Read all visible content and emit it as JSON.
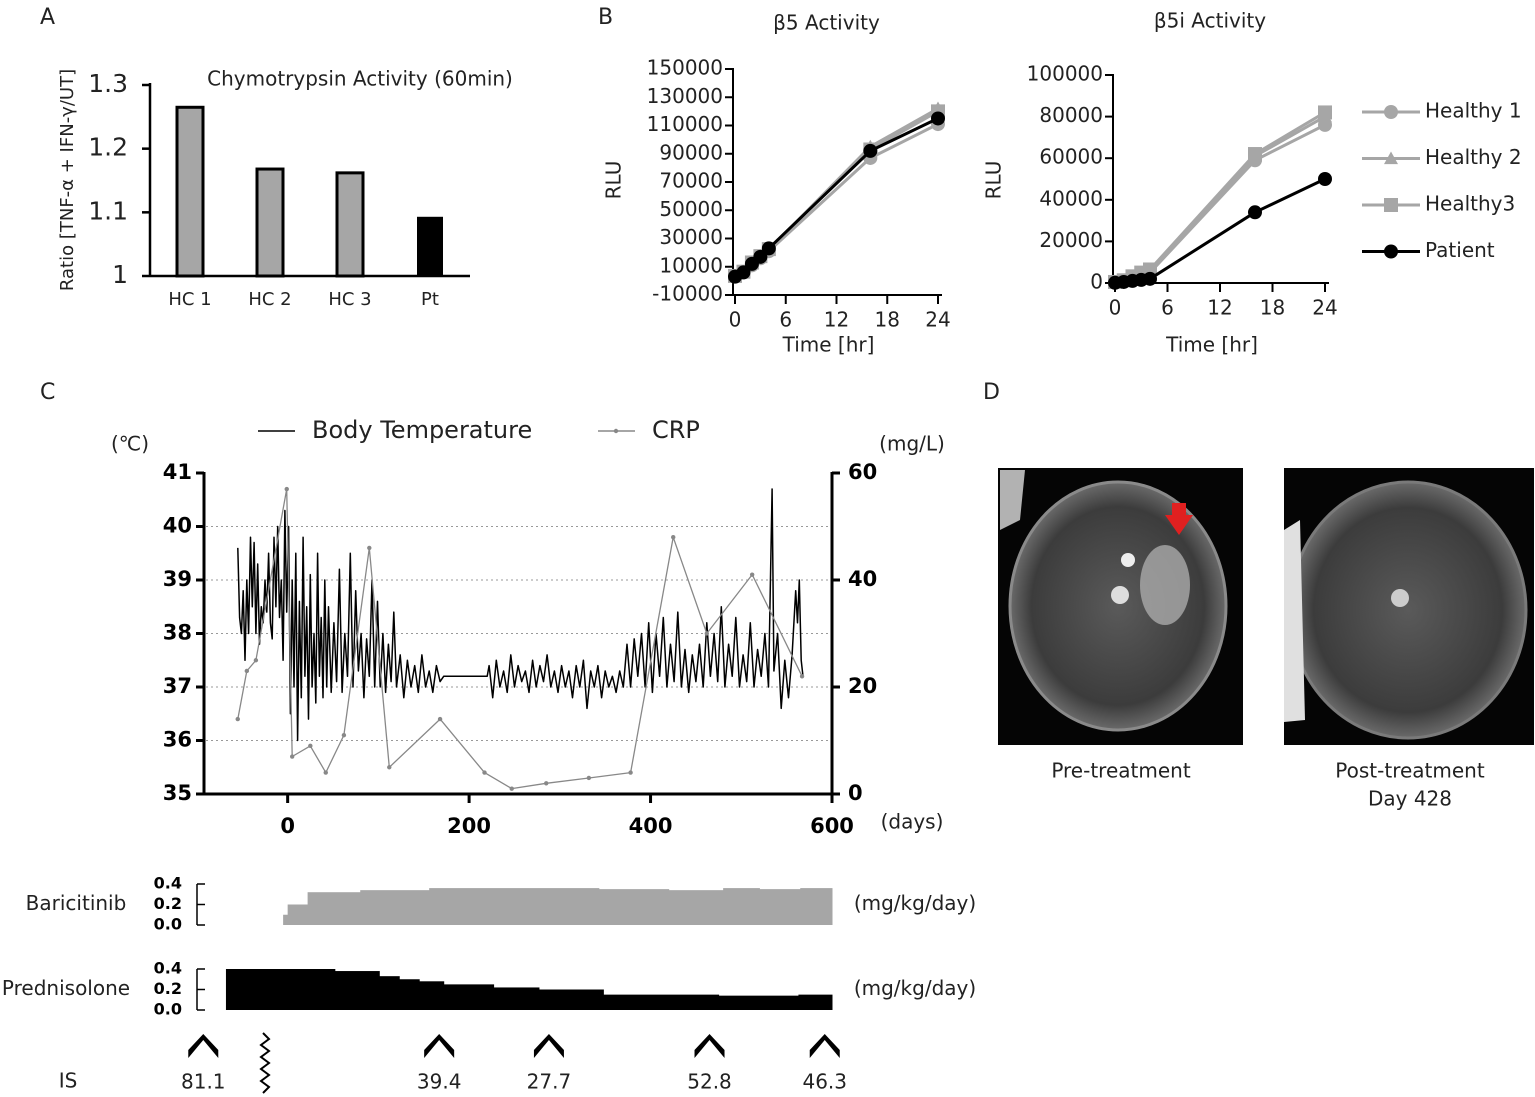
{
  "panel_labels": [
    "A",
    "B",
    "C",
    "D"
  ],
  "images": [
    {
      "caption": [
        "Pre-treatment"
      ]
    },
    {
      "caption": [
        "Post-treatment",
        "Day 428"
      ]
    }
  ],
  "immunosuppression": {
    "label": "IS",
    "x": [
      -93,
      167,
      288,
      465,
      592
    ],
    "values": [
      81.1,
      39.4,
      27.7,
      52.8,
      46.3
    ]
  },
  "chart_data": [
    {
      "type": "bar",
      "title": "Chymotrypsin  Activity  (60min)",
      "ylabel": "Ratio [TNF-α + IFN-γ/UT]",
      "categories": [
        "HC 1",
        "HC 2",
        "HC 3",
        "Pt"
      ],
      "values": [
        1.265,
        1.168,
        1.162,
        1.093
      ],
      "colors": [
        "#a6a6a6",
        "#a6a6a6",
        "#a6a6a6",
        "#000000"
      ],
      "ylim": [
        1,
        1.3
      ],
      "yticks": [
        1,
        1.1,
        1.2,
        1.3
      ]
    },
    {
      "type": "line",
      "title": "β5 Activity",
      "xlabel": "Time [hr]",
      "ylabel": "RLU",
      "x": [
        0,
        1,
        2,
        3,
        4,
        16,
        24
      ],
      "xlim": [
        0,
        24
      ],
      "xticks": [
        0,
        6,
        12,
        18,
        24
      ],
      "ylim": [
        -10000,
        150000
      ],
      "yticks": [
        -10000,
        10000,
        30000,
        50000,
        70000,
        90000,
        110000,
        130000,
        150000
      ],
      "series": [
        {
          "color": "#a6a6a6",
          "marker": "circle",
          "values": [
            3000,
            6000,
            11000,
            16000,
            21000,
            87000,
            111000
          ]
        },
        {
          "color": "#a6a6a6",
          "marker": "triangle",
          "values": [
            3500,
            6500,
            12000,
            17000,
            22000,
            95000,
            122000
          ]
        },
        {
          "color": "#a6a6a6",
          "marker": "square",
          "values": [
            3500,
            6500,
            13000,
            17500,
            22500,
            93000,
            120000
          ]
        },
        {
          "color": "#000000",
          "marker": "circle",
          "values": [
            3000,
            6000,
            12000,
            17000,
            23000,
            92000,
            115000
          ]
        }
      ]
    },
    {
      "type": "line",
      "title": "β5i Activity",
      "xlabel": "Time [hr]",
      "ylabel": "RLU",
      "legend_position": "right",
      "x": [
        0,
        1,
        2,
        3,
        4,
        16,
        24
      ],
      "xlim": [
        0,
        24
      ],
      "xticks": [
        0,
        6,
        12,
        18,
        24
      ],
      "ylim": [
        0,
        100000
      ],
      "yticks": [
        0,
        20000,
        40000,
        60000,
        80000,
        100000
      ],
      "series": [
        {
          "name": "Healthy 1",
          "color": "#a6a6a6",
          "marker": "circle",
          "values": [
            300,
            1000,
            2500,
            4000,
            5000,
            59000,
            76000
          ]
        },
        {
          "name": "Healthy 2",
          "color": "#a6a6a6",
          "marker": "triangle",
          "values": [
            400,
            1200,
            3000,
            4500,
            6000,
            61000,
            80000
          ]
        },
        {
          "name": "Healthy3",
          "color": "#a6a6a6",
          "marker": "square",
          "values": [
            500,
            1300,
            3200,
            5000,
            6500,
            62000,
            82000
          ]
        },
        {
          "name": "Patient",
          "color": "#000000",
          "marker": "circle",
          "values": [
            100,
            500,
            1000,
            1500,
            2000,
            34000,
            50000
          ]
        }
      ]
    },
    {
      "type": "line",
      "y_unit": "(℃)",
      "y2_unit": "(mg/L)",
      "x_unit": "(days)",
      "legend_position": "top",
      "grid": true,
      "xlim": [
        -90,
        600
      ],
      "xticks": [
        0,
        200,
        400,
        600
      ],
      "ylim": [
        35,
        41
      ],
      "yticks": [
        35,
        36,
        37,
        38,
        39,
        40,
        41
      ],
      "y2lim": [
        0,
        60
      ],
      "y2ticks": [
        0,
        20,
        40,
        60
      ],
      "series": [
        {
          "name": "Body Temperature",
          "color": "#000000",
          "marker": "none",
          "x": [
            -55,
            -53,
            -51,
            -49,
            -47,
            -45,
            -43,
            -41,
            -39,
            -37,
            -35,
            -33,
            -31,
            -29,
            -27,
            -25,
            -23,
            -21,
            -19,
            -17,
            -15,
            -13,
            -11,
            -9,
            -7,
            -5,
            -3,
            -1,
            1,
            3,
            5,
            7,
            9,
            11,
            13,
            15,
            17,
            19,
            21,
            23,
            25,
            27,
            29,
            31,
            33,
            35,
            37,
            39,
            41,
            43,
            45,
            48,
            51,
            54,
            57,
            60,
            63,
            66,
            69,
            72,
            75,
            78,
            81,
            84,
            87,
            90,
            93,
            96,
            99,
            102,
            105,
            108,
            111,
            114,
            117,
            120,
            124,
            128,
            132,
            136,
            140,
            144,
            148,
            152,
            156,
            160,
            164,
            168,
            172,
            220,
            222,
            226,
            230,
            234,
            238,
            242,
            246,
            250,
            254,
            258,
            262,
            266,
            270,
            274,
            278,
            282,
            286,
            290,
            294,
            298,
            302,
            306,
            310,
            314,
            318,
            322,
            326,
            330,
            334,
            338,
            342,
            346,
            350,
            354,
            358,
            362,
            366,
            370,
            374,
            378,
            382,
            386,
            390,
            394,
            398,
            402,
            406,
            410,
            414,
            418,
            422,
            426,
            430,
            434,
            438,
            442,
            446,
            450,
            454,
            458,
            462,
            466,
            470,
            474,
            478,
            482,
            486,
            490,
            494,
            498,
            502,
            506,
            510,
            514,
            518,
            522,
            526,
            530,
            534,
            536,
            540,
            544,
            548,
            552,
            556,
            560,
            562,
            564,
            566,
            568
          ],
          "values": [
            39.6,
            38.3,
            38.0,
            38.8,
            37.5,
            39.0,
            38.0,
            39.8,
            38.5,
            39.7,
            38.0,
            39.3,
            37.8,
            38.5,
            38.2,
            39.0,
            38.4,
            39.5,
            38.2,
            37.9,
            39.8,
            38.5,
            40.0,
            38.3,
            39.0,
            37.5,
            40.3,
            38.4,
            40.0,
            36.5,
            39.0,
            37.0,
            39.5,
            36.0,
            38.6,
            36.8,
            39.8,
            37.2,
            38.5,
            36.4,
            39.1,
            37.0,
            38.0,
            36.7,
            39.5,
            37.2,
            38.3,
            36.8,
            39.0,
            37.0,
            38.5,
            36.9,
            38.2,
            37.1,
            39.2,
            36.9,
            38.0,
            37.2,
            39.5,
            37.0,
            38.8,
            37.3,
            38.0,
            36.8,
            37.9,
            37.2,
            39.0,
            37.0,
            38.6,
            37.0,
            38.0,
            36.9,
            37.8,
            37.1,
            38.4,
            37.0,
            37.6,
            36.8,
            37.5,
            37.0,
            37.4,
            36.9,
            37.6,
            37.0,
            37.3,
            36.9,
            37.4,
            37.1,
            37.2,
            37.2,
            37.4,
            36.8,
            37.5,
            37.0,
            37.3,
            36.9,
            37.6,
            37.0,
            37.4,
            37.1,
            37.3,
            36.9,
            37.5,
            37.0,
            37.4,
            37.1,
            37.6,
            37.0,
            37.3,
            36.9,
            37.4,
            37.0,
            37.3,
            36.8,
            37.4,
            37.0,
            37.5,
            36.6,
            37.3,
            37.0,
            37.4,
            36.8,
            37.3,
            37.0,
            37.2,
            36.9,
            37.3,
            37.0,
            37.8,
            37.0,
            37.9,
            37.2,
            38.0,
            37.0,
            38.2,
            36.9,
            38.0,
            37.2,
            38.3,
            37.0,
            37.8,
            37.1,
            38.4,
            37.0,
            37.7,
            36.9,
            37.6,
            37.1,
            37.8,
            37.0,
            38.2,
            37.2,
            38.0,
            37.1,
            38.5,
            37.0,
            37.8,
            37.2,
            38.3,
            37.0,
            37.6,
            37.1,
            38.2,
            37.0,
            37.7,
            37.2,
            38.0,
            37.0,
            40.7,
            37.3,
            38.0,
            36.6,
            37.5,
            36.8,
            37.6,
            38.8,
            38.2,
            39.0,
            37.5,
            37.2
          ]
        },
        {
          "name": "CRP",
          "color": "#888888",
          "marker": "dot",
          "axis": "y2",
          "x": [
            -55,
            -45,
            -35,
            -1,
            5,
            25,
            42,
            62,
            90,
            112,
            168,
            217,
            247,
            285,
            332,
            378,
            425,
            462,
            512,
            567
          ],
          "values": [
            14,
            23,
            25,
            57,
            7,
            9,
            4,
            11,
            46,
            5,
            14,
            4,
            1,
            2,
            3,
            4,
            48,
            30,
            41,
            22
          ]
        }
      ]
    },
    {
      "type": "step",
      "ylabel": "Baricitinib",
      "unit": "(mg/kg/day)",
      "color": "#a6a6a6",
      "xlim": [
        -90,
        600
      ],
      "ylim": [
        0,
        0.4
      ],
      "yticks": [
        {
          "value": 0,
          "label": "0.0"
        },
        0.2,
        0.4
      ],
      "x": [
        -5,
        0,
        22,
        80,
        156,
        343,
        420,
        480,
        520,
        565
      ],
      "values": [
        0.1,
        0.2,
        0.32,
        0.34,
        0.36,
        0.35,
        0.34,
        0.36,
        0.35,
        0.36
      ]
    },
    {
      "type": "step",
      "ylabel": "Prednisolone",
      "unit": "(mg/kg/day)",
      "color": "#000000",
      "xlim": [
        -90,
        600
      ],
      "ylim": [
        0,
        0.4
      ],
      "yticks": [
        {
          "value": 0,
          "label": "0.0"
        },
        0.2,
        0.4
      ],
      "x": [
        -68,
        52,
        101,
        123,
        145,
        172,
        227,
        277,
        348,
        475,
        563
      ],
      "values": [
        0.4,
        0.38,
        0.33,
        0.3,
        0.28,
        0.25,
        0.22,
        0.2,
        0.15,
        0.14,
        0.15
      ]
    }
  ]
}
